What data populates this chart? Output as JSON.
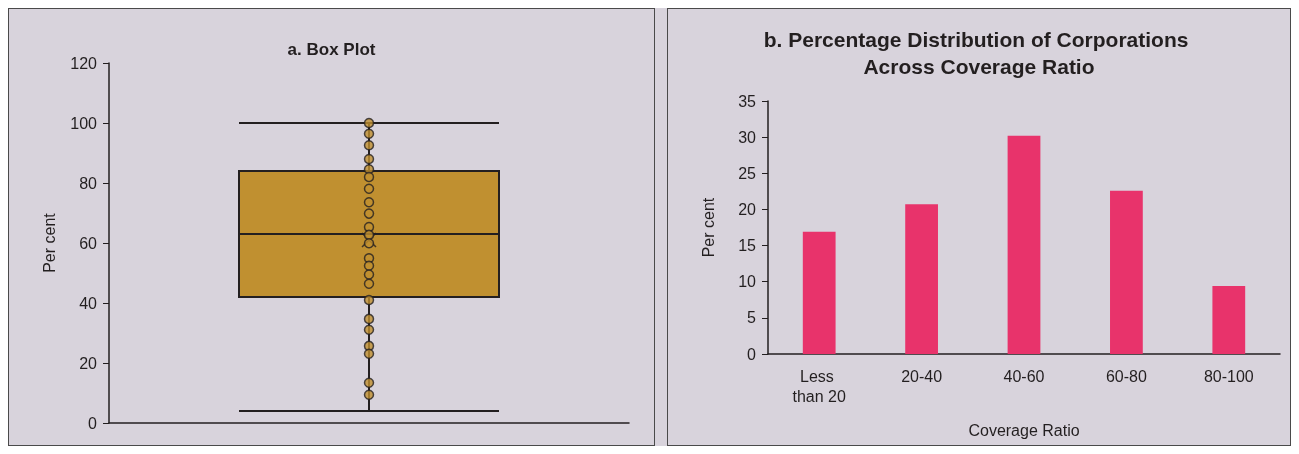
{
  "chart_data": [
    {
      "type": "box",
      "title": "a. Box Plot",
      "ylabel": "Per cent",
      "categories": [
        null
      ],
      "ylim": [
        0,
        120
      ],
      "yticks": [
        0,
        20,
        40,
        60,
        80,
        100,
        120
      ],
      "grid": false,
      "tick_labels": "y",
      "series": [
        {
          "type": "box",
          "color": "#c09030",
          "boxes": [
            {
              "low": 4,
              "q1": 42,
              "median": 63,
              "q3": 84,
              "high": 100,
              "mean": 61
            }
          ]
        },
        {
          "type": "scatter",
          "color": "#c09030",
          "marker": "circle",
          "x": [
            null,
            null,
            null,
            null,
            null,
            null,
            null,
            null,
            null,
            null,
            null,
            null,
            null,
            null,
            null,
            null,
            null,
            null,
            null,
            null,
            null,
            null,
            null
          ],
          "values": [
            100,
            96.4,
            92.6,
            88,
            84.6,
            82,
            78.1,
            73.6,
            69.8,
            65.3,
            62.7,
            59.9,
            54.9,
            52.4,
            49.5,
            46.4,
            41,
            34.7,
            31.1,
            25.7,
            23.1,
            13.4,
            9.4
          ]
        }
      ]
    },
    {
      "type": "bar",
      "title": "b. Percentage Distribution of Corporations Across Coverage Ratio",
      "xlabel": "Coverage Ratio",
      "ylabel": "Per cent",
      "categories": [
        "Less than 20",
        "20-40",
        "40-60",
        "60-80",
        "80-100"
      ],
      "ylim": [
        0,
        35
      ],
      "yticks": [
        0,
        5,
        10,
        15,
        20,
        25,
        30,
        35
      ],
      "grid": false,
      "series": [
        {
          "color": "#e8336b",
          "values": [
            16.9,
            20.7,
            30.2,
            22.6,
            9.4
          ]
        }
      ]
    }
  ]
}
